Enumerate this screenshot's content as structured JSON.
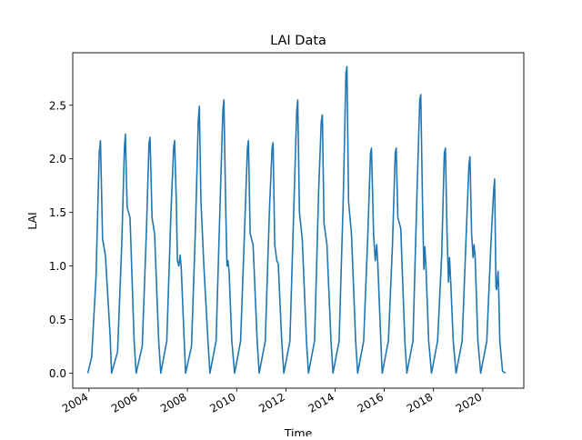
{
  "chart_data": {
    "type": "line",
    "title": "LAI Data",
    "xlabel": "Time",
    "ylabel": "LAI",
    "x_ticks": [
      "2004",
      "2006",
      "2008",
      "2010",
      "2012",
      "2014",
      "2016",
      "2018",
      "2020"
    ],
    "y_ticks": [
      "0.0",
      "0.5",
      "1.0",
      "1.5",
      "2.0",
      "2.5"
    ],
    "xlim": [
      "2003-05-05",
      "2021-09-01"
    ],
    "ylim": [
      -0.14,
      2.99
    ],
    "grid": false,
    "legend": "none",
    "series_color": "#1f77b4",
    "series": [
      {
        "x": [
          "2003-12-15",
          "2004-02-10",
          "2004-04-15",
          "2004-06-01",
          "2004-06-20",
          "2004-07-20",
          "2004-09-01",
          "2004-11-10",
          "2004-12-01",
          "2005-03-01",
          "2005-05-01",
          "2005-06-10",
          "2005-06-25",
          "2005-07-20",
          "2005-09-01",
          "2005-11-01",
          "2005-12-01",
          "2006-03-01",
          "2006-05-01",
          "2006-06-10",
          "2006-06-25",
          "2006-07-25",
          "2006-09-01",
          "2006-11-01",
          "2006-12-01",
          "2007-03-01",
          "2007-05-01",
          "2007-06-10",
          "2007-06-25",
          "2007-07-20",
          "2007-08-05",
          "2007-08-25",
          "2007-09-15",
          "2007-10-01",
          "2007-11-15",
          "2007-12-05",
          "2008-03-01",
          "2008-05-01",
          "2008-06-10",
          "2008-06-25",
          "2008-07-20",
          "2008-09-01",
          "2008-11-01",
          "2008-12-01",
          "2009-03-01",
          "2009-05-01",
          "2009-06-10",
          "2009-06-25",
          "2009-07-20",
          "2009-08-10",
          "2009-08-25",
          "2009-09-10",
          "2009-10-20",
          "2009-12-01",
          "2010-03-01",
          "2010-05-01",
          "2010-06-10",
          "2010-06-25",
          "2010-07-20",
          "2010-09-01",
          "2010-11-01",
          "2010-12-01",
          "2011-03-01",
          "2011-05-01",
          "2011-06-10",
          "2011-06-25",
          "2011-07-20",
          "2011-08-20",
          "2011-09-10",
          "2011-11-01",
          "2011-12-01",
          "2012-03-01",
          "2012-05-01",
          "2012-06-10",
          "2012-06-25",
          "2012-07-20",
          "2012-09-01",
          "2012-11-01",
          "2012-12-01",
          "2013-03-01",
          "2013-05-01",
          "2013-06-10",
          "2013-06-25",
          "2013-07-20",
          "2013-09-01",
          "2013-11-01",
          "2013-12-01",
          "2014-03-01",
          "2014-05-01",
          "2014-06-10",
          "2014-06-25",
          "2014-07-20",
          "2014-09-01",
          "2014-11-01",
          "2014-12-01",
          "2015-03-01",
          "2015-05-01",
          "2015-06-10",
          "2015-06-25",
          "2015-07-25",
          "2015-08-20",
          "2015-09-10",
          "2015-09-25",
          "2015-11-10",
          "2015-12-01",
          "2016-03-01",
          "2016-05-01",
          "2016-06-10",
          "2016-06-25",
          "2016-07-20",
          "2016-09-01",
          "2016-11-01",
          "2016-12-01",
          "2017-03-01",
          "2017-05-01",
          "2017-06-10",
          "2017-06-25",
          "2017-07-20",
          "2017-08-10",
          "2017-08-25",
          "2017-09-10",
          "2017-10-20",
          "2017-12-01",
          "2018-03-01",
          "2018-05-01",
          "2018-06-10",
          "2018-06-25",
          "2018-07-20",
          "2018-08-10",
          "2018-08-25",
          "2018-09-10",
          "2018-10-20",
          "2018-12-01",
          "2019-03-01",
          "2019-05-01",
          "2019-06-10",
          "2019-06-25",
          "2019-07-20",
          "2019-08-10",
          "2019-08-25",
          "2019-09-10",
          "2019-10-20",
          "2019-12-01",
          "2020-03-01",
          "2020-05-01",
          "2020-06-10",
          "2020-06-25",
          "2020-07-15",
          "2020-07-25",
          "2020-08-15",
          "2020-08-25",
          "2020-09-10",
          "2020-10-20",
          "2020-12-01"
        ],
        "y": [
          0.0,
          0.15,
          0.9,
          2.05,
          2.17,
          1.25,
          1.1,
          0.35,
          0.0,
          0.2,
          1.2,
          2.1,
          2.23,
          1.55,
          1.45,
          0.3,
          0.0,
          0.25,
          1.3,
          2.15,
          2.2,
          1.45,
          1.3,
          0.3,
          0.0,
          0.3,
          1.5,
          2.1,
          2.17,
          1.6,
          1.05,
          1.0,
          1.1,
          0.98,
          0.3,
          0.0,
          0.25,
          1.4,
          2.35,
          2.49,
          1.6,
          1.0,
          0.3,
          0.0,
          0.3,
          1.6,
          2.45,
          2.55,
          1.6,
          1.0,
          1.05,
          0.95,
          0.3,
          0.0,
          0.3,
          1.4,
          2.1,
          2.17,
          1.3,
          1.2,
          0.3,
          0.0,
          0.3,
          1.5,
          2.1,
          2.15,
          1.2,
          1.05,
          1.02,
          0.3,
          0.0,
          0.3,
          1.6,
          2.45,
          2.55,
          1.5,
          1.25,
          0.3,
          0.0,
          0.3,
          1.7,
          2.35,
          2.41,
          1.4,
          1.2,
          0.3,
          0.0,
          0.3,
          1.6,
          2.8,
          2.86,
          1.6,
          1.3,
          0.3,
          0.0,
          0.3,
          1.3,
          2.05,
          2.1,
          1.3,
          1.05,
          1.2,
          1.03,
          0.3,
          0.0,
          0.3,
          1.2,
          2.05,
          2.1,
          1.45,
          1.35,
          0.3,
          0.0,
          0.3,
          1.7,
          2.55,
          2.6,
          1.6,
          0.97,
          1.18,
          0.99,
          0.3,
          0.0,
          0.3,
          1.1,
          2.05,
          2.1,
          1.3,
          0.85,
          1.08,
          0.88,
          0.3,
          0.0,
          0.3,
          1.3,
          1.95,
          2.02,
          1.3,
          1.08,
          1.2,
          1.08,
          0.3,
          0.0,
          0.3,
          1.2,
          1.7,
          1.81,
          0.8,
          0.78,
          0.95,
          0.78,
          0.3,
          0.02,
          0.0
        ]
      }
    ]
  }
}
